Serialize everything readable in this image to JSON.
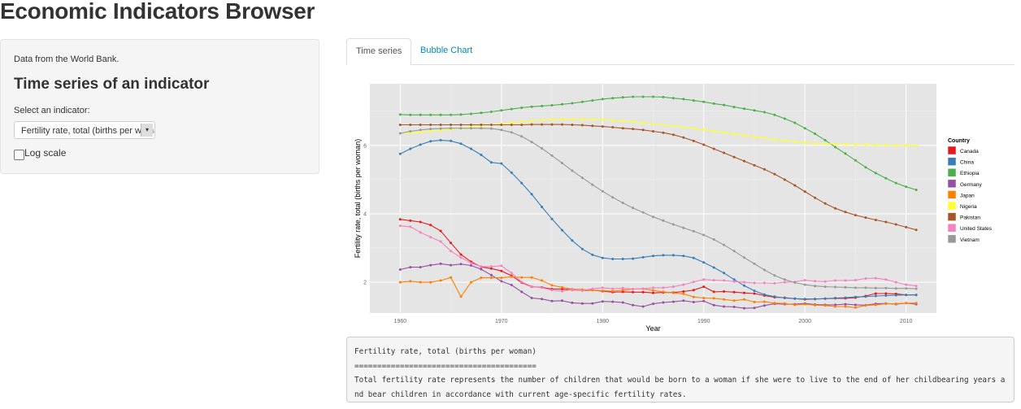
{
  "app": {
    "title": "Economic Indicators Browser"
  },
  "sidebar": {
    "source_text": "Data from the World Bank.",
    "heading": "Time series of an indicator",
    "select_label": "Select an indicator:",
    "select_value": "Fertility rate, total (births per woman)",
    "checkbox_label": "Log scale",
    "checkbox_checked": false
  },
  "tabs": [
    {
      "label": "Time series",
      "active": true
    },
    {
      "label": "Bubble Chart",
      "active": false
    }
  ],
  "description": {
    "title": "Fertility rate, total (births per woman)",
    "rule": "========================================",
    "text": "Total fertility rate represents the number of children that would be born to a woman if she were to live to the end of her childbearing years and bear children in accordance with current age-specific fertility rates."
  },
  "colors": {
    "panel_bg": "#f5f5f5",
    "plot_bg": "#e5e5e5",
    "link": "#0088cc"
  },
  "chart_data": {
    "type": "line",
    "xlabel": "Year",
    "ylabel": "Fertility rate, total (births per woman)",
    "xlim": [
      1957,
      2013
    ],
    "ylim": [
      1.1,
      7.8
    ],
    "x_ticks": [
      1960,
      1970,
      1980,
      1990,
      2000,
      2010
    ],
    "y_ticks": [
      2,
      4,
      6
    ],
    "grid": true,
    "legend_title": "Country",
    "legend_position": "right",
    "series": [
      {
        "name": "Canada",
        "color": "#e41a1c",
        "x": [
          1960,
          1961,
          1962,
          1963,
          1964,
          1965,
          1966,
          1967,
          1968,
          1969,
          1970,
          1971,
          1972,
          1973,
          1974,
          1975,
          1976,
          1977,
          1978,
          1979,
          1980,
          1981,
          1982,
          1983,
          1984,
          1985,
          1986,
          1987,
          1988,
          1989,
          1990,
          1991,
          1992,
          1993,
          1994,
          1995,
          1996,
          1997,
          1998,
          1999,
          2000,
          2001,
          2002,
          2003,
          2004,
          2005,
          2006,
          2007,
          2008,
          2009,
          2010,
          2011
        ],
        "y": [
          3.84,
          3.8,
          3.76,
          3.67,
          3.5,
          3.15,
          2.81,
          2.6,
          2.45,
          2.4,
          2.33,
          2.19,
          1.99,
          1.87,
          1.85,
          1.8,
          1.8,
          1.78,
          1.76,
          1.77,
          1.74,
          1.71,
          1.72,
          1.71,
          1.71,
          1.69,
          1.7,
          1.7,
          1.73,
          1.77,
          1.87,
          1.72,
          1.73,
          1.71,
          1.69,
          1.67,
          1.61,
          1.56,
          1.55,
          1.52,
          1.5,
          1.51,
          1.52,
          1.53,
          1.53,
          1.55,
          1.6,
          1.67,
          1.67,
          1.66,
          1.63,
          1.63
        ]
      },
      {
        "name": "China",
        "color": "#377eb8",
        "x": [
          1960,
          1961,
          1962,
          1963,
          1964,
          1965,
          1966,
          1967,
          1968,
          1969,
          1970,
          1971,
          1972,
          1973,
          1974,
          1975,
          1976,
          1977,
          1978,
          1979,
          1980,
          1981,
          1982,
          1983,
          1984,
          1985,
          1986,
          1987,
          1988,
          1989,
          1990,
          1991,
          1992,
          1993,
          1994,
          1995,
          1996,
          1997,
          1998,
          1999,
          2000,
          2001,
          2002,
          2003,
          2004,
          2005,
          2006,
          2007,
          2008,
          2009,
          2010,
          2011
        ],
        "y": [
          5.75,
          5.9,
          6.02,
          6.12,
          6.15,
          6.13,
          6.05,
          5.9,
          5.72,
          5.5,
          5.47,
          5.2,
          4.9,
          4.57,
          4.2,
          3.85,
          3.52,
          3.22,
          2.97,
          2.8,
          2.71,
          2.68,
          2.68,
          2.69,
          2.73,
          2.77,
          2.79,
          2.79,
          2.77,
          2.71,
          2.58,
          2.43,
          2.27,
          2.08,
          1.9,
          1.75,
          1.64,
          1.58,
          1.54,
          1.52,
          1.51,
          1.51,
          1.52,
          1.54,
          1.55,
          1.57,
          1.58,
          1.6,
          1.61,
          1.62,
          1.63,
          1.63
        ]
      },
      {
        "name": "Ethiopia",
        "color": "#4daf4a",
        "x": [
          1960,
          1961,
          1962,
          1963,
          1964,
          1965,
          1966,
          1967,
          1968,
          1969,
          1970,
          1971,
          1972,
          1973,
          1974,
          1975,
          1976,
          1977,
          1978,
          1979,
          1980,
          1981,
          1982,
          1983,
          1984,
          1985,
          1986,
          1987,
          1988,
          1989,
          1990,
          1991,
          1992,
          1993,
          1994,
          1995,
          1996,
          1997,
          1998,
          1999,
          2000,
          2001,
          2002,
          2003,
          2004,
          2005,
          2006,
          2007,
          2008,
          2009,
          2010,
          2011
        ],
        "y": [
          6.9,
          6.89,
          6.89,
          6.89,
          6.89,
          6.89,
          6.9,
          6.92,
          6.95,
          6.98,
          7.02,
          7.06,
          7.1,
          7.13,
          7.15,
          7.17,
          7.2,
          7.23,
          7.27,
          7.31,
          7.35,
          7.38,
          7.4,
          7.42,
          7.42,
          7.42,
          7.41,
          7.38,
          7.35,
          7.31,
          7.27,
          7.22,
          7.18,
          7.12,
          7.07,
          7.02,
          6.97,
          6.89,
          6.78,
          6.66,
          6.5,
          6.34,
          6.15,
          5.95,
          5.76,
          5.56,
          5.36,
          5.19,
          5.04,
          4.9,
          4.79,
          4.7
        ]
      },
      {
        "name": "Germany",
        "color": "#984ea3",
        "x": [
          1960,
          1961,
          1962,
          1963,
          1964,
          1965,
          1966,
          1967,
          1968,
          1969,
          1970,
          1971,
          1972,
          1973,
          1974,
          1975,
          1976,
          1977,
          1978,
          1979,
          1980,
          1981,
          1982,
          1983,
          1984,
          1985,
          1986,
          1987,
          1988,
          1989,
          1990,
          1991,
          1992,
          1993,
          1994,
          1995,
          1996,
          1997,
          1998,
          1999,
          2000,
          2001,
          2002,
          2003,
          2004,
          2005,
          2006,
          2007,
          2008,
          2009,
          2010,
          2011
        ],
        "y": [
          2.37,
          2.44,
          2.44,
          2.5,
          2.54,
          2.5,
          2.53,
          2.49,
          2.38,
          2.21,
          2.03,
          1.92,
          1.72,
          1.54,
          1.51,
          1.45,
          1.46,
          1.4,
          1.38,
          1.38,
          1.44,
          1.43,
          1.41,
          1.33,
          1.29,
          1.37,
          1.41,
          1.43,
          1.46,
          1.42,
          1.45,
          1.33,
          1.29,
          1.28,
          1.24,
          1.25,
          1.32,
          1.37,
          1.36,
          1.36,
          1.38,
          1.35,
          1.34,
          1.34,
          1.36,
          1.34,
          1.33,
          1.37,
          1.38,
          1.36,
          1.39,
          1.36
        ]
      },
      {
        "name": "Japan",
        "color": "#ff7f00",
        "x": [
          1960,
          1961,
          1962,
          1963,
          1964,
          1965,
          1966,
          1967,
          1968,
          1969,
          1970,
          1971,
          1972,
          1973,
          1974,
          1975,
          1976,
          1977,
          1978,
          1979,
          1980,
          1981,
          1982,
          1983,
          1984,
          1985,
          1986,
          1987,
          1988,
          1989,
          1990,
          1991,
          1992,
          1993,
          1994,
          1995,
          1996,
          1997,
          1998,
          1999,
          2000,
          2001,
          2002,
          2003,
          2004,
          2005,
          2006,
          2007,
          2008,
          2009,
          2010,
          2011
        ],
        "y": [
          2.0,
          2.03,
          2.0,
          2.0,
          2.05,
          2.14,
          1.58,
          2.0,
          2.13,
          2.13,
          2.13,
          2.16,
          2.14,
          2.14,
          2.05,
          1.91,
          1.85,
          1.8,
          1.79,
          1.77,
          1.75,
          1.74,
          1.77,
          1.8,
          1.81,
          1.76,
          1.72,
          1.69,
          1.66,
          1.57,
          1.54,
          1.53,
          1.5,
          1.46,
          1.5,
          1.42,
          1.43,
          1.39,
          1.38,
          1.34,
          1.36,
          1.33,
          1.32,
          1.29,
          1.29,
          1.26,
          1.32,
          1.34,
          1.37,
          1.37,
          1.39,
          1.39
        ]
      },
      {
        "name": "Nigeria",
        "color": "#ffff33",
        "x": [
          1960,
          1961,
          1962,
          1963,
          1964,
          1965,
          1966,
          1967,
          1968,
          1969,
          1970,
          1971,
          1972,
          1973,
          1974,
          1975,
          1976,
          1977,
          1978,
          1979,
          1980,
          1981,
          1982,
          1983,
          1984,
          1985,
          1986,
          1987,
          1988,
          1989,
          1990,
          1991,
          1992,
          1993,
          1994,
          1995,
          1996,
          1997,
          1998,
          1999,
          2000,
          2001,
          2002,
          2003,
          2004,
          2005,
          2006,
          2007,
          2008,
          2009,
          2010,
          2011
        ],
        "y": [
          6.35,
          6.37,
          6.39,
          6.41,
          6.44,
          6.47,
          6.5,
          6.54,
          6.57,
          6.6,
          6.63,
          6.66,
          6.69,
          6.72,
          6.74,
          6.76,
          6.77,
          6.77,
          6.77,
          6.76,
          6.75,
          6.73,
          6.71,
          6.69,
          6.66,
          6.63,
          6.6,
          6.57,
          6.53,
          6.5,
          6.46,
          6.42,
          6.38,
          6.33,
          6.29,
          6.25,
          6.21,
          6.17,
          6.14,
          6.11,
          6.08,
          6.06,
          6.05,
          6.04,
          6.03,
          6.02,
          6.02,
          6.01,
          6.01,
          6.0,
          6.0,
          6.0
        ]
      },
      {
        "name": "Pakistan",
        "color": "#a65628",
        "x": [
          1960,
          1961,
          1962,
          1963,
          1964,
          1965,
          1966,
          1967,
          1968,
          1969,
          1970,
          1971,
          1972,
          1973,
          1974,
          1975,
          1976,
          1977,
          1978,
          1979,
          1980,
          1981,
          1982,
          1983,
          1984,
          1985,
          1986,
          1987,
          1988,
          1989,
          1990,
          1991,
          1992,
          1993,
          1994,
          1995,
          1996,
          1997,
          1998,
          1999,
          2000,
          2001,
          2002,
          2003,
          2004,
          2005,
          2006,
          2007,
          2008,
          2009,
          2010,
          2011
        ],
        "y": [
          6.6,
          6.6,
          6.6,
          6.6,
          6.6,
          6.6,
          6.6,
          6.6,
          6.6,
          6.6,
          6.6,
          6.6,
          6.6,
          6.61,
          6.61,
          6.61,
          6.61,
          6.6,
          6.59,
          6.57,
          6.55,
          6.53,
          6.5,
          6.48,
          6.45,
          6.41,
          6.37,
          6.31,
          6.23,
          6.13,
          6.02,
          5.9,
          5.78,
          5.66,
          5.54,
          5.42,
          5.3,
          5.16,
          5.0,
          4.83,
          4.65,
          4.47,
          4.3,
          4.16,
          4.05,
          3.96,
          3.89,
          3.82,
          3.76,
          3.69,
          3.61,
          3.53
        ]
      },
      {
        "name": "United States",
        "color": "#f781bf",
        "x": [
          1960,
          1961,
          1962,
          1963,
          1964,
          1965,
          1966,
          1967,
          1968,
          1969,
          1970,
          1971,
          1972,
          1973,
          1974,
          1975,
          1976,
          1977,
          1978,
          1979,
          1980,
          1981,
          1982,
          1983,
          1984,
          1985,
          1986,
          1987,
          1988,
          1989,
          1990,
          1991,
          1992,
          1993,
          1994,
          1995,
          1996,
          1997,
          1998,
          1999,
          2000,
          2001,
          2002,
          2003,
          2004,
          2005,
          2006,
          2007,
          2008,
          2009,
          2010,
          2011
        ],
        "y": [
          3.65,
          3.62,
          3.46,
          3.32,
          3.19,
          2.91,
          2.72,
          2.56,
          2.46,
          2.46,
          2.48,
          2.27,
          2.01,
          1.88,
          1.84,
          1.77,
          1.74,
          1.79,
          1.76,
          1.81,
          1.84,
          1.81,
          1.83,
          1.8,
          1.81,
          1.84,
          1.84,
          1.87,
          1.93,
          2.01,
          2.08,
          2.06,
          2.05,
          2.02,
          2.0,
          1.98,
          1.98,
          1.97,
          2.0,
          2.01,
          2.06,
          2.03,
          2.02,
          2.05,
          2.05,
          2.06,
          2.11,
          2.12,
          2.08,
          2.0,
          1.93,
          1.89
        ]
      },
      {
        "name": "Vietnam",
        "color": "#999999",
        "x": [
          1960,
          1961,
          1962,
          1963,
          1964,
          1965,
          1966,
          1967,
          1968,
          1969,
          1970,
          1971,
          1972,
          1973,
          1974,
          1975,
          1976,
          1977,
          1978,
          1979,
          1980,
          1981,
          1982,
          1983,
          1984,
          1985,
          1986,
          1987,
          1988,
          1989,
          1990,
          1991,
          1992,
          1993,
          1994,
          1995,
          1996,
          1997,
          1998,
          1999,
          2000,
          2001,
          2002,
          2003,
          2004,
          2005,
          2006,
          2007,
          2008,
          2009,
          2010,
          2011
        ],
        "y": [
          6.35,
          6.41,
          6.45,
          6.48,
          6.49,
          6.5,
          6.5,
          6.5,
          6.5,
          6.49,
          6.45,
          6.38,
          6.26,
          6.1,
          5.91,
          5.7,
          5.48,
          5.26,
          5.05,
          4.85,
          4.66,
          4.48,
          4.32,
          4.17,
          4.04,
          3.91,
          3.8,
          3.69,
          3.59,
          3.49,
          3.38,
          3.25,
          3.09,
          2.91,
          2.72,
          2.54,
          2.36,
          2.2,
          2.08,
          1.99,
          1.93,
          1.89,
          1.87,
          1.86,
          1.85,
          1.84,
          1.84,
          1.83,
          1.83,
          1.82,
          1.82,
          1.81
        ]
      }
    ]
  }
}
